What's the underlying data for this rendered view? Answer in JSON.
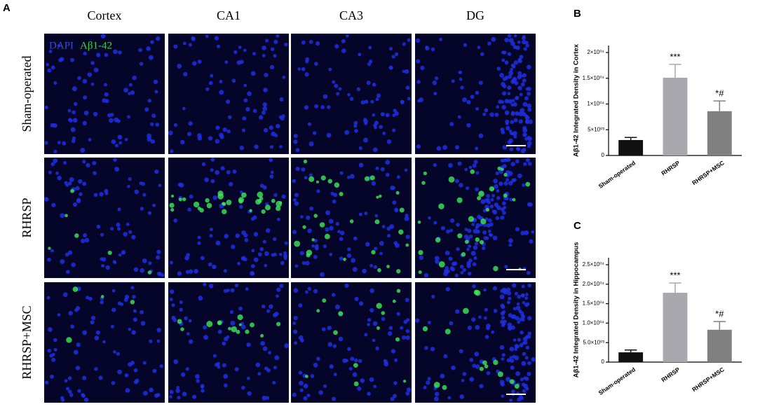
{
  "panel_a": {
    "label": "A",
    "columns": [
      "Cortex",
      "CA1",
      "CA3",
      "DG"
    ],
    "rows": [
      "Sham-operated",
      "RHRSP",
      "RHRSP+MSC"
    ],
    "stain_dapi": "DAPI",
    "stain_abeta": "Aβ1-42"
  },
  "chart_data": [
    {
      "type": "bar",
      "panel": "B",
      "ylabel": "Aβ1-42 Integrated Density in Cortex",
      "categories": [
        "Sham-operated",
        "RHRSP",
        "RHRSP+MSC"
      ],
      "values": [
        3000,
        15100,
        8600
      ],
      "errors": [
        500,
        2600,
        2000
      ],
      "colors": [
        "#111111",
        "#a8a8ae",
        "#808080"
      ],
      "annotations": [
        {
          "category": "RHRSP",
          "text": "***"
        },
        {
          "category": "RHRSP+MSC",
          "text": "*#"
        }
      ],
      "ylim": [
        0,
        20000
      ],
      "yticks": [
        0,
        {
          "value": 5000,
          "label": "5×10⁰³"
        },
        {
          "value": 10000,
          "label": "1×10⁰⁴"
        },
        {
          "value": 15000,
          "label": "1.5×10⁰⁴"
        },
        {
          "value": 20000,
          "label": "2×10⁰⁴"
        }
      ]
    },
    {
      "type": "bar",
      "panel": "C",
      "ylabel": "Aβ1-42 Integrated Density in Hippocampus",
      "categories": [
        "Sham-operated",
        "RHRSP",
        "RHRSP+MSC"
      ],
      "values": [
        2500,
        17800,
        8300
      ],
      "errors": [
        600,
        2500,
        2100
      ],
      "colors": [
        "#111111",
        "#a8a8ae",
        "#808080"
      ],
      "annotations": [
        {
          "category": "RHRSP",
          "text": "***"
        },
        {
          "category": "RHRSP+MSC",
          "text": "*#"
        }
      ],
      "ylim": [
        0,
        25000
      ],
      "yticks": [
        0,
        {
          "value": 5000,
          "label": "5.0×10⁰³"
        },
        {
          "value": 10000,
          "label": "1.0×10⁰⁴"
        },
        {
          "value": 15000,
          "label": "1.5×10⁰⁴"
        },
        {
          "value": 20000,
          "label": "2.0×10⁰⁴"
        },
        {
          "value": 25000,
          "label": "2.5×10⁰⁴"
        }
      ]
    }
  ]
}
